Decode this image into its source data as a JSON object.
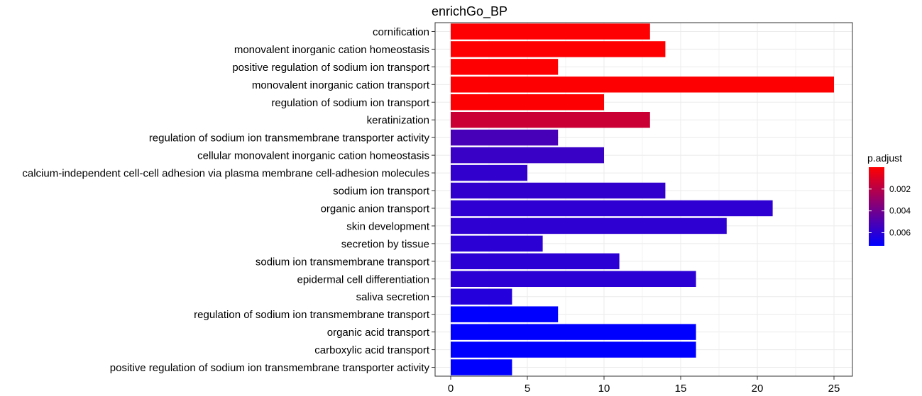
{
  "chart_data": {
    "type": "bar",
    "orientation": "horizontal",
    "title": "enrichGo_BP",
    "xlabel": "",
    "ylabel": "",
    "xlim": [
      0,
      26
    ],
    "xticks": [
      0,
      5,
      10,
      15,
      20,
      25
    ],
    "grid": true,
    "categories": [
      "cornification",
      "monovalent inorganic cation homeostasis",
      "positive regulation of sodium ion transport",
      "monovalent inorganic cation transport",
      "regulation of sodium ion transport",
      "keratinization",
      "regulation of sodium ion transmembrane transporter activity",
      "cellular monovalent inorganic cation homeostasis",
      "calcium-independent cell-cell adhesion via plasma membrane cell-adhesion molecules",
      "sodium ion transport",
      "organic anion transport",
      "skin development",
      "secretion by tissue",
      "sodium ion transmembrane transport",
      "epidermal cell differentiation",
      "saliva secretion",
      "regulation of sodium ion transmembrane transport",
      "organic acid transport",
      "carboxylic acid transport",
      "positive regulation of sodium ion transmembrane transporter activity"
    ],
    "values": [
      13,
      14,
      7,
      25,
      10,
      13,
      7,
      10,
      5,
      14,
      21,
      18,
      6,
      11,
      16,
      4,
      7,
      16,
      16,
      4
    ],
    "p_adjust": [
      2e-05,
      3e-05,
      4e-05,
      5e-05,
      7e-05,
      0.0015,
      0.0052,
      0.0056,
      0.0058,
      0.0058,
      0.0059,
      0.0059,
      0.006,
      0.006,
      0.006,
      0.0062,
      0.0072,
      0.0073,
      0.0073,
      0.0073
    ],
    "legend": {
      "title": "p.adjust",
      "position": "right",
      "range": [
        0.0,
        0.0072
      ],
      "ticks": [
        0.002,
        0.004,
        0.006
      ],
      "tick_labels": [
        "0.002",
        "0.004",
        "0.006"
      ],
      "color_low": "#ff0000",
      "color_high": "#0000ff"
    },
    "colors": {
      "panel_border": "#333333",
      "grid": "#ebebeb",
      "text": "#000000"
    }
  }
}
